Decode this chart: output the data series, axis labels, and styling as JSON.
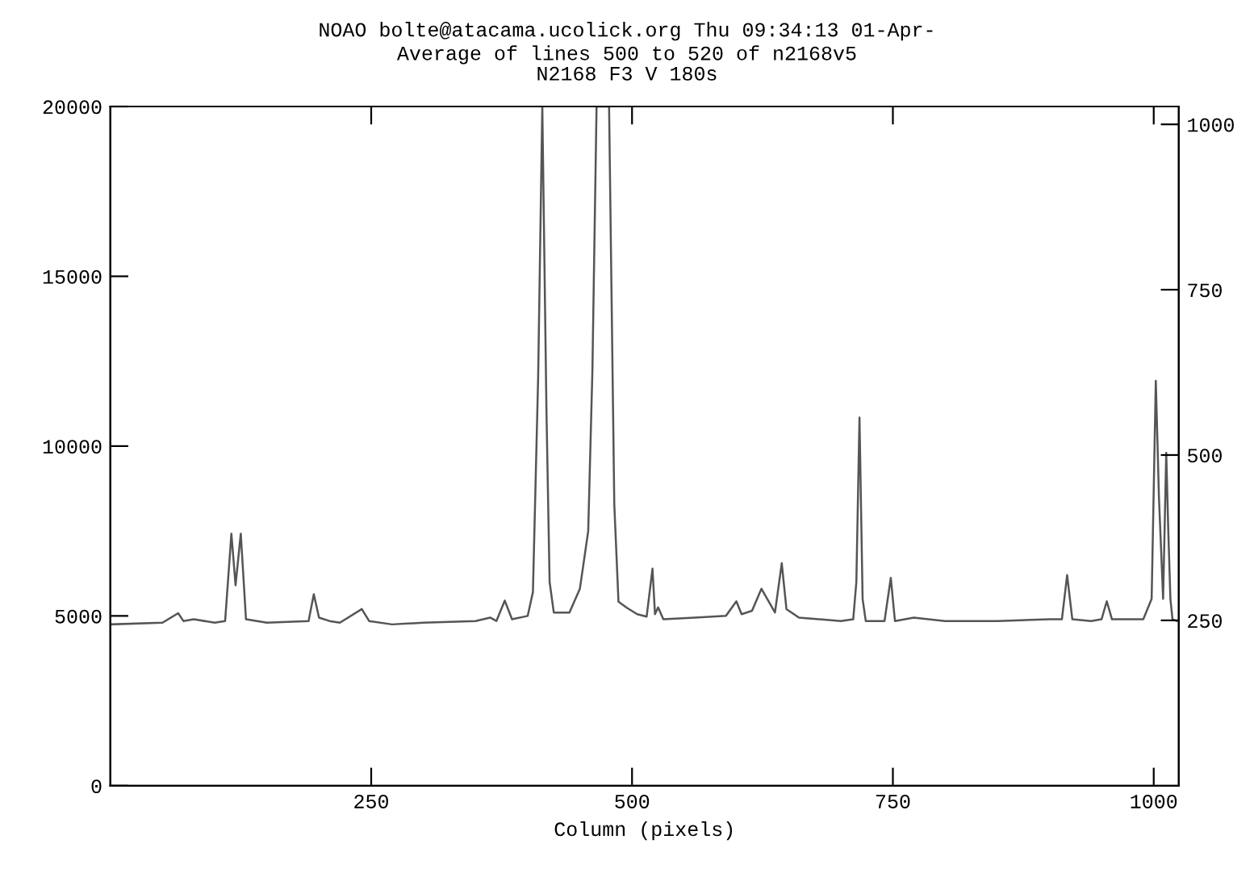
{
  "chart_data": {
    "type": "line",
    "title": "NOAO bolte@atacama.ucolick.org Thu 09:34:13 01-Apr-",
    "subtitle": "Average of lines 500 to 520 of n2168v5\nN2168 F3 V 180s",
    "xlabel": "Column (pixels)",
    "x": [
      0,
      50,
      65,
      70,
      80,
      100,
      110,
      116,
      120,
      125,
      130,
      150,
      190,
      195,
      200,
      210,
      220,
      241,
      248,
      270,
      300,
      350,
      364,
      370,
      378,
      385,
      400,
      405,
      410,
      414,
      418,
      421,
      425,
      440,
      450,
      453,
      458,
      462,
      466,
      478,
      483,
      487,
      495,
      505,
      514,
      519.6,
      522,
      525,
      530,
      560,
      590,
      600,
      605,
      615,
      624,
      637,
      643.5,
      648,
      660,
      700,
      712,
      715,
      718,
      721,
      724,
      742,
      748,
      752,
      770,
      800,
      850,
      900,
      912,
      917,
      922,
      940,
      950,
      955,
      960,
      990,
      998,
      1002,
      1005,
      1009,
      1012,
      1014,
      1016,
      1018,
      1022
    ],
    "series": [
      {
        "color": "#555555",
        "values": [
          4750,
          4800,
          5080,
          4850,
          4900,
          4800,
          4850,
          7420,
          5900,
          7420,
          4900,
          4800,
          4850,
          5640,
          4950,
          4850,
          4800,
          5200,
          4850,
          4750,
          4800,
          4850,
          4950,
          4850,
          5450,
          4900,
          5000,
          5700,
          12000,
          20000,
          11000,
          6000,
          5100,
          5100,
          5800,
          6430,
          7500,
          12200,
          20000,
          20000,
          8280,
          5420,
          5240,
          5050,
          4980,
          6390,
          5050,
          5250,
          4900,
          4950,
          5000,
          5430,
          5050,
          5150,
          5800,
          5100,
          6550,
          5200,
          4950,
          4850,
          4900,
          6000,
          10840,
          5500,
          4850,
          4850,
          6120,
          4850,
          4950,
          4850,
          4850,
          4900,
          4900,
          6200,
          4900,
          4850,
          4900,
          5430,
          4900,
          4900,
          5500,
          11920,
          8500,
          5500,
          9800,
          7470,
          5500,
          4900,
          4850
        ]
      }
    ],
    "xlim": [
      0,
      1024
    ],
    "xticks": [
      250,
      500,
      750,
      1000
    ],
    "ylim": [
      0,
      20000
    ],
    "yticks": [
      0,
      5000,
      10000,
      15000,
      20000
    ],
    "y2lim": [
      0,
      1027
    ],
    "y2ticks": [
      250,
      500,
      750,
      1000
    ],
    "grid": false,
    "legend": false
  }
}
